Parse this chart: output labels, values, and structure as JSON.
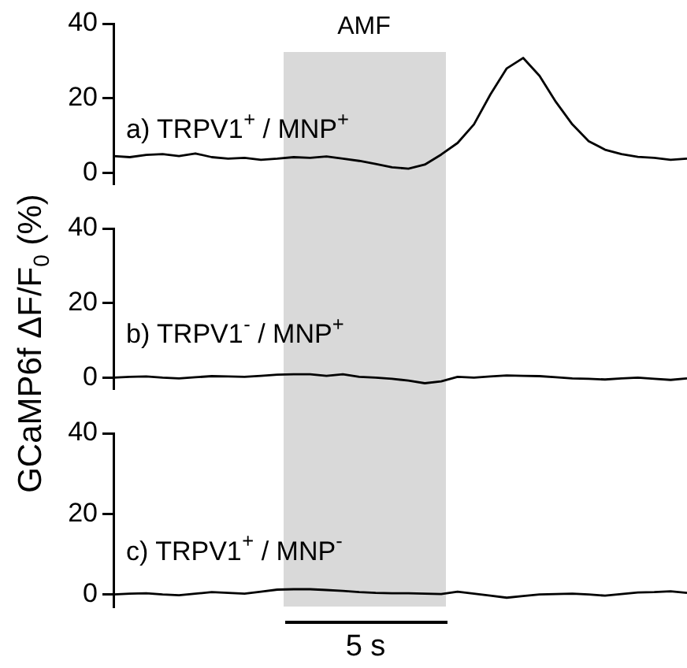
{
  "chart_data": [
    {
      "type": "line",
      "categories": [
        null,
        null,
        null,
        null,
        null,
        null,
        null,
        null,
        null,
        null,
        null,
        null,
        null,
        null,
        null,
        null,
        null,
        null,
        null,
        null,
        null,
        null,
        null,
        null,
        null,
        null,
        null,
        null,
        null,
        null,
        null,
        null,
        null,
        null,
        null,
        null
      ],
      "ylim": [
        -3,
        40
      ],
      "yticks": [
        0,
        20,
        40
      ],
      "tick_labels": "y",
      "grid": false,
      "legend": "bottom left",
      "marker": "none",
      "annotations": [
        "AMF"
      ],
      "series": [
        {
          "name": "a) TRPV1$^{+}$ / MNP$^{+}$",
          "color": "#000000",
          "values": [
            4.5,
            4.2,
            4.8,
            5,
            4.5,
            5.2,
            4.2,
            3.8,
            4,
            3.5,
            3.8,
            4.2,
            4,
            4.4,
            3.8,
            3.2,
            2.4,
            1.5,
            1.1,
            2.2,
            4.9,
            8,
            13,
            21,
            28,
            30.8,
            26,
            19,
            13,
            8.5,
            6.2,
            5,
            4.3,
            4,
            3.5,
            3.8
          ]
        }
      ]
    },
    {
      "type": "line",
      "categories": [
        null,
        null,
        null,
        null,
        null,
        null,
        null,
        null,
        null,
        null,
        null,
        null,
        null,
        null,
        null,
        null,
        null,
        null,
        null,
        null,
        null,
        null,
        null,
        null,
        null,
        null,
        null,
        null,
        null,
        null,
        null,
        null,
        null,
        null,
        null,
        null
      ],
      "ylim": [
        -3,
        40
      ],
      "yticks": [
        0,
        20,
        40
      ],
      "tick_labels": "y",
      "grid": false,
      "legend": "bottom left",
      "marker": "none",
      "ylabel": "GCaMP6f ΔF/F$_{0}$ (%)",
      "series": [
        {
          "name": "b) TRPV1$^{-}$ / MNP$^{+}$",
          "color": "#000000",
          "values": [
            0,
            0.2,
            0.3,
            0,
            -0.2,
            0.1,
            0.4,
            0.3,
            0.2,
            0.5,
            0.8,
            0.9,
            0.9,
            0.5,
            0.9,
            0.2,
            0,
            -0.3,
            -0.8,
            -1.5,
            -1,
            0.2,
            0,
            0.3,
            0.6,
            0.5,
            0.4,
            0.1,
            -0.2,
            -0.3,
            -0.5,
            -0.2,
            0,
            -0.3,
            -0.6,
            -0.2
          ]
        }
      ]
    },
    {
      "type": "line",
      "categories": [
        null,
        null,
        null,
        null,
        null,
        null,
        null,
        null,
        null,
        null,
        null,
        null,
        null,
        null,
        null,
        null,
        null,
        null,
        null,
        null,
        null,
        null,
        null,
        null,
        null,
        null,
        null,
        null,
        null,
        null,
        null,
        null,
        null,
        null,
        null,
        null
      ],
      "ylim": [
        -3,
        40
      ],
      "yticks": [
        0,
        20,
        40
      ],
      "tick_labels": "y",
      "grid": false,
      "legend": "bottom left",
      "marker": "none",
      "annotations": [
        "5 s"
      ],
      "series": [
        {
          "name": "c) TRPV1$^{+}$ / MNP$^{-}$",
          "color": "#000000",
          "values": [
            0,
            0.2,
            0.3,
            0,
            -0.2,
            0.2,
            0.6,
            0.4,
            0.2,
            0.7,
            1.2,
            1.3,
            1.3,
            1.1,
            0.9,
            0.6,
            0.4,
            0.3,
            0.3,
            0.2,
            0.1,
            0.7,
            0.2,
            -0.3,
            -0.8,
            -0.4,
            0,
            0.1,
            0.2,
            0,
            -0.3,
            0.1,
            0.5,
            0.6,
            0.8,
            0.4
          ]
        }
      ]
    }
  ]
}
